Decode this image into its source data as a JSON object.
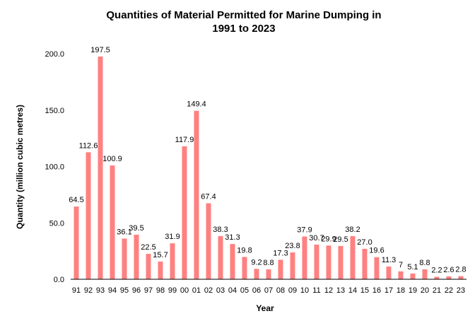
{
  "chart_data": {
    "type": "bar",
    "title_line1": "Quantities of Material Permitted for Marine Dumping in",
    "title_line2": "1991 to 2023",
    "xlabel": "Year",
    "ylabel": "Quantity (million cubic metres)",
    "ylim": [
      0,
      200
    ],
    "yticks": [
      "0.0",
      "50.0",
      "100.0",
      "150.0",
      "200.0"
    ],
    "grid": false,
    "bar_color": "#ff8080",
    "categories": [
      "91",
      "92",
      "93",
      "94",
      "95",
      "96",
      "97",
      "98",
      "99",
      "00",
      "01",
      "02",
      "03",
      "04",
      "05",
      "06",
      "07",
      "08",
      "09",
      "10",
      "11",
      "12",
      "13",
      "14",
      "15",
      "16",
      "17",
      "18",
      "19",
      "20",
      "21",
      "22",
      "23"
    ],
    "values": [
      64.5,
      112.6,
      197.5,
      100.9,
      36.1,
      39.5,
      22.5,
      15.7,
      31.9,
      117.9,
      149.4,
      67.4,
      38.3,
      31.3,
      19.8,
      9.2,
      8.8,
      17.3,
      23.8,
      37.9,
      30.7,
      29.9,
      29.5,
      38.2,
      27.0,
      19.6,
      11.3,
      7,
      5.1,
      8.8,
      2.2,
      2.6,
      2.8
    ],
    "labels": [
      "64.5",
      "112.6",
      "197.5",
      "100.9",
      "36.1",
      "39.5",
      "22.5",
      "15.7",
      "31.9",
      "117.9",
      "149.4",
      "67.4",
      "38.3",
      "31.3",
      "19.8",
      "9.2",
      "8.8",
      "17.3",
      "23.8",
      "37.9",
      "30.7",
      "29.9",
      "29.5",
      "38.2",
      "27.0",
      "19.6",
      "11.3",
      "7",
      "5.1",
      "8.8",
      "2.2",
      "2.6",
      "2.8"
    ]
  }
}
